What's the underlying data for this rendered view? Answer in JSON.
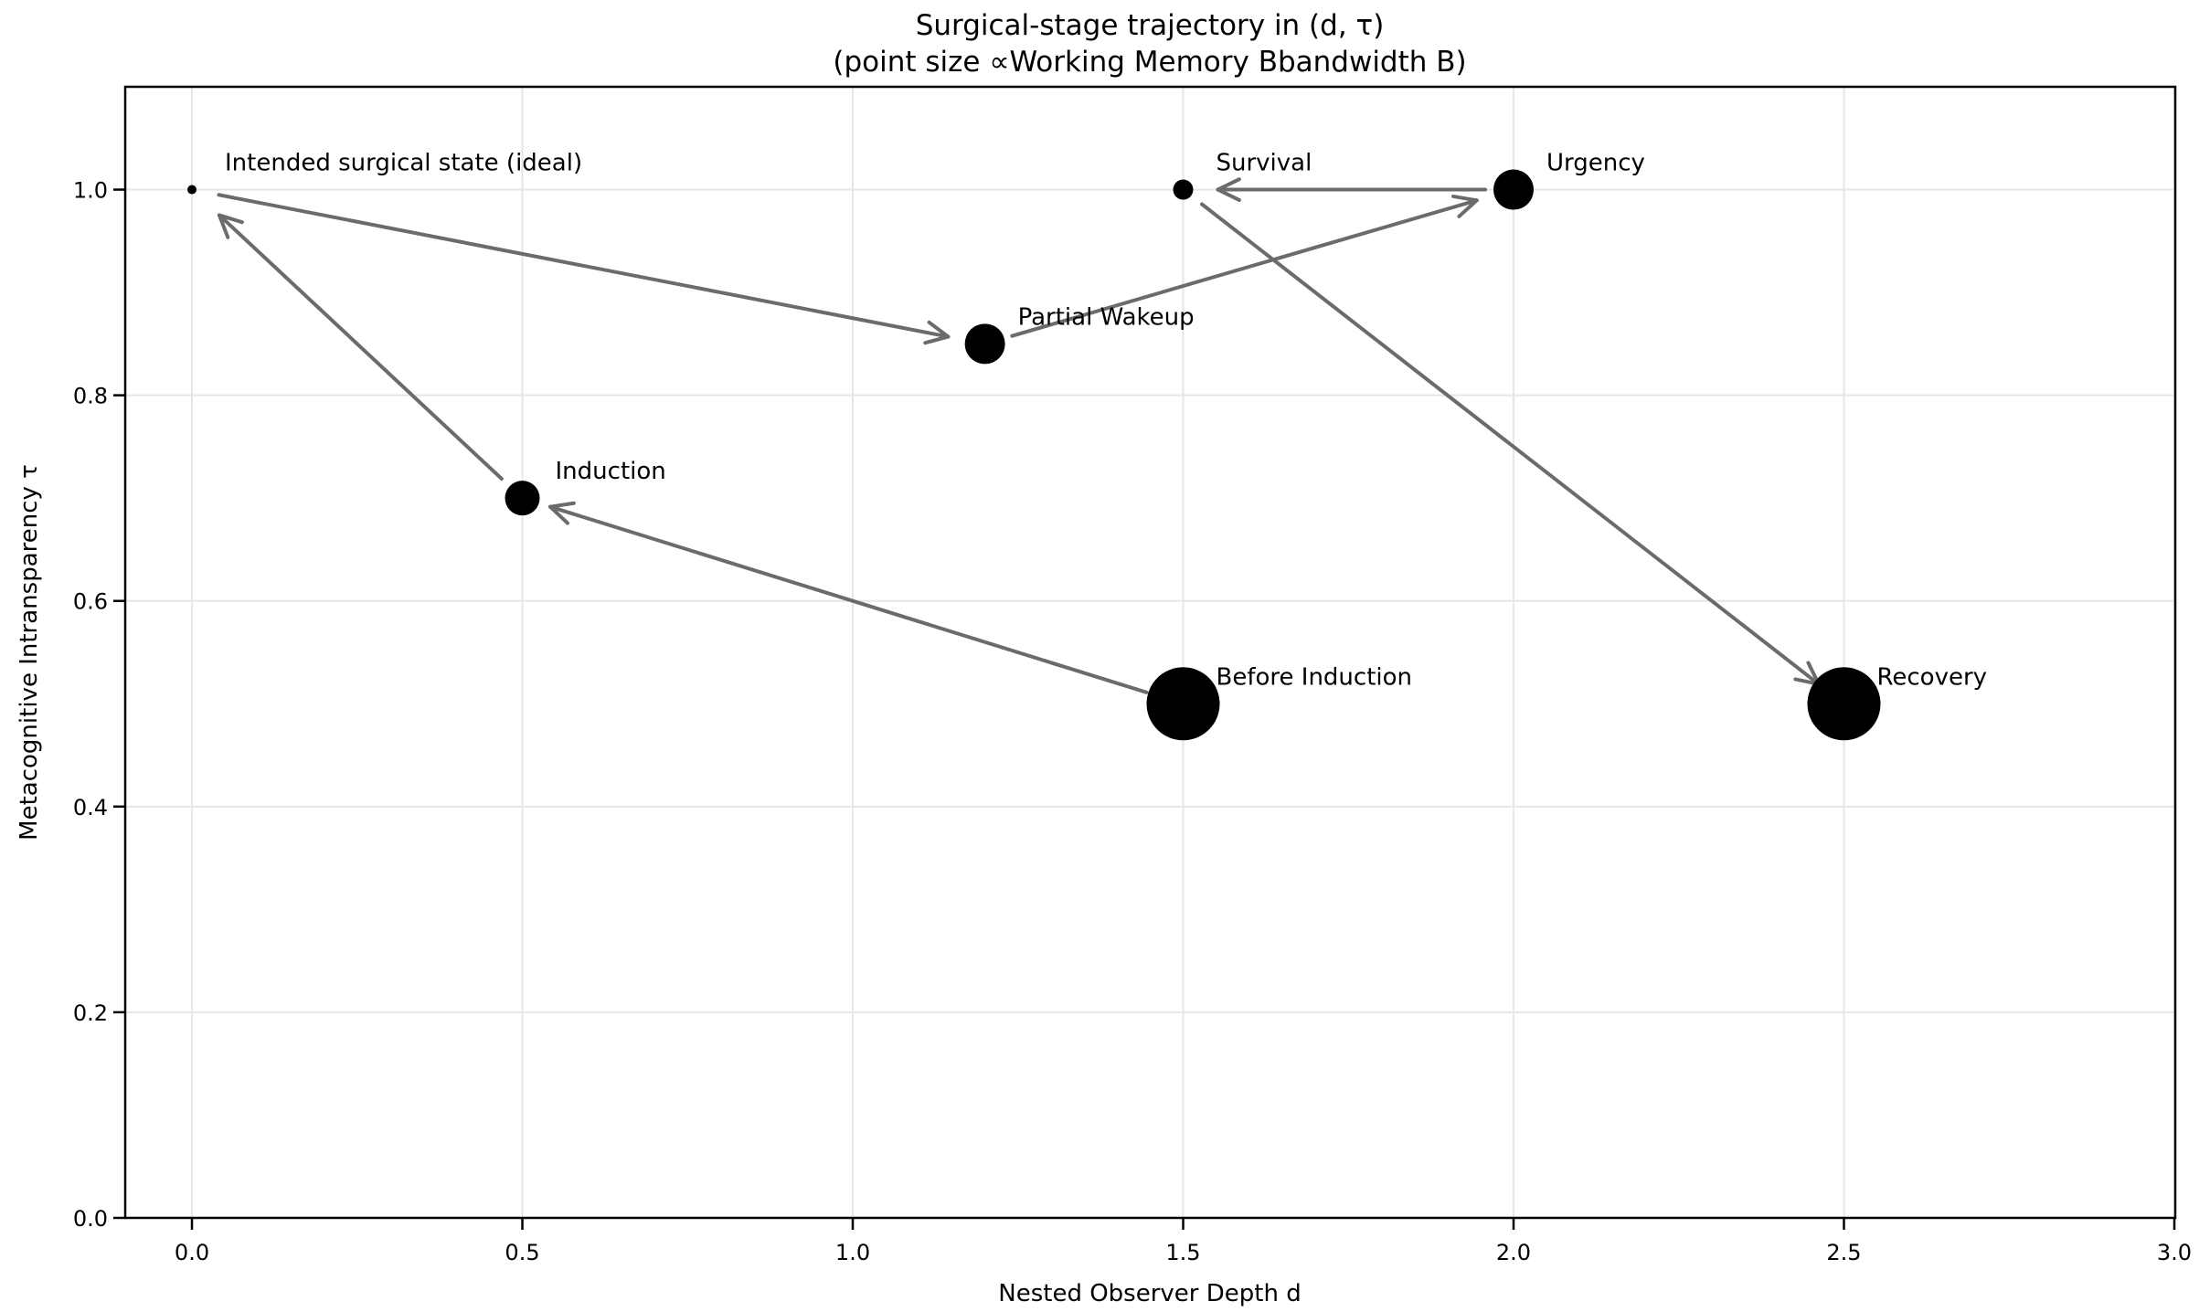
{
  "chart_data": {
    "type": "scatter",
    "title": "Surgical-stage trajectory in (d, τ)",
    "subtitle": "(point size ∝Working Memory Bbandwidth B)",
    "xlabel": "Nested Observer Depth d",
    "ylabel": "Metacognitive Intransparency τ",
    "xlim": [
      -0.101,
      3.0014
    ],
    "ylim": [
      0.0,
      1.1
    ],
    "x_ticks": [
      "0.0",
      "0.5",
      "1.0",
      "1.5",
      "2.0",
      "2.5",
      "3.0"
    ],
    "y_ticks": [
      "0.0",
      "0.2",
      "0.4",
      "0.6",
      "0.8",
      "1.0"
    ],
    "grid": true,
    "legend": "none",
    "point_color": "#000000",
    "arrow_color": "#6b6b6b",
    "points": [
      {
        "label": "Intended surgical state (ideal)",
        "d": 0.0,
        "tau": 1.0,
        "radius_px": 5
      },
      {
        "label": "Induction",
        "d": 0.5,
        "tau": 0.7,
        "radius_px": 19
      },
      {
        "label": "Partial Wakeup",
        "d": 1.2,
        "tau": 0.85,
        "radius_px": 22
      },
      {
        "label": "Before Induction",
        "d": 1.5,
        "tau": 0.5,
        "radius_px": 40
      },
      {
        "label": "Survival",
        "d": 1.5,
        "tau": 1.0,
        "radius_px": 11
      },
      {
        "label": "Urgency",
        "d": 2.0,
        "tau": 1.0,
        "radius_px": 22
      },
      {
        "label": "Recovery",
        "d": 2.5,
        "tau": 0.5,
        "radius_px": 40
      }
    ],
    "trajectory": [
      "Before Induction",
      "Induction",
      "Intended surgical state (ideal)",
      "Partial Wakeup",
      "Urgency",
      "Survival",
      "Recovery"
    ]
  }
}
